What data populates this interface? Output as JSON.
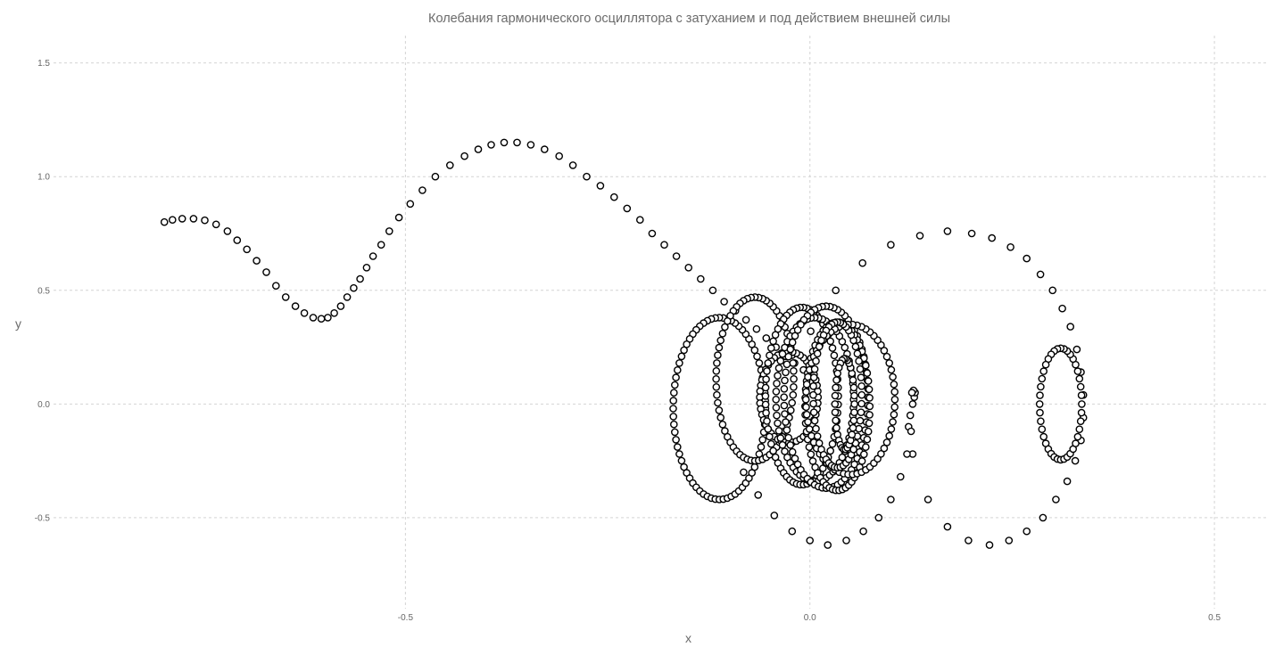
{
  "chart_data": {
    "type": "scatter",
    "title": "Колебания гармонического осциллятора с затуханием и под действием внешней силы",
    "xlabel": "x",
    "ylabel": "y",
    "xlim": [
      -0.935,
      0.565
    ],
    "ylim": [
      -0.9,
      1.62
    ],
    "x_ticks": [
      -0.5,
      0.0,
      0.5
    ],
    "x_tick_labels": [
      "-0.5",
      "0.0",
      "0.5"
    ],
    "y_ticks": [
      -0.5,
      0.0,
      0.5,
      1.0,
      1.5
    ],
    "y_tick_labels": [
      "-0.5",
      "0.0",
      "0.5",
      "1.0",
      "1.5"
    ],
    "grid": true,
    "legend": "none",
    "marker": "open-circle",
    "marker_color": "#000000",
    "series": [
      {
        "x": [
          -0.798,
          -0.788,
          -0.776,
          -0.762,
          -0.748,
          -0.734,
          -0.72,
          -0.708,
          -0.696,
          -0.684,
          -0.672,
          -0.66,
          -0.648,
          -0.636,
          -0.625,
          -0.614,
          -0.604,
          -0.596,
          -0.588,
          -0.58,
          -0.572,
          -0.564,
          -0.556,
          -0.548,
          -0.54,
          -0.53,
          -0.52,
          -0.508,
          -0.494,
          -0.479,
          -0.463,
          -0.445,
          -0.427,
          -0.41,
          -0.394,
          -0.378,
          -0.362,
          -0.345,
          -0.328,
          -0.31,
          -0.293,
          -0.276,
          -0.259,
          -0.242,
          -0.226,
          -0.21,
          -0.195,
          -0.18,
          -0.165,
          -0.15,
          -0.135,
          -0.12,
          -0.106,
          -0.092,
          -0.079,
          -0.066,
          -0.054,
          -0.042,
          -0.03,
          -0.019,
          -0.008,
          0.003
        ],
        "y": [
          0.8,
          0.81,
          0.815,
          0.815,
          0.808,
          0.79,
          0.76,
          0.72,
          0.68,
          0.63,
          0.58,
          0.52,
          0.47,
          0.43,
          0.4,
          0.38,
          0.375,
          0.38,
          0.4,
          0.43,
          0.47,
          0.51,
          0.55,
          0.6,
          0.65,
          0.7,
          0.76,
          0.82,
          0.88,
          0.94,
          1.0,
          1.05,
          1.09,
          1.12,
          1.14,
          1.15,
          1.15,
          1.14,
          1.12,
          1.09,
          1.05,
          1.0,
          0.96,
          0.91,
          0.86,
          0.81,
          0.75,
          0.7,
          0.65,
          0.6,
          0.55,
          0.5,
          0.45,
          0.41,
          0.37,
          0.33,
          0.29,
          0.25,
          0.21,
          0.18,
          0.15,
          0.12
        ]
      },
      {
        "x": [
          0.001,
          0.032,
          0.065,
          0.1,
          0.136,
          0.17,
          0.2,
          0.225,
          0.248,
          0.268,
          0.285,
          0.3,
          0.312,
          0.322,
          0.33,
          0.335,
          0.338,
          0.338,
          0.335,
          0.328,
          0.318,
          0.304,
          0.288,
          0.268,
          0.246,
          0.222,
          0.196,
          0.17,
          0.146,
          0.127,
          0.122,
          0.124,
          0.127,
          0.129,
          0.13,
          0.128,
          0.126
        ],
        "y": [
          0.32,
          0.5,
          0.62,
          0.7,
          0.74,
          0.76,
          0.75,
          0.73,
          0.69,
          0.64,
          0.57,
          0.5,
          0.42,
          0.34,
          0.24,
          0.14,
          0.04,
          -0.06,
          -0.16,
          -0.25,
          -0.34,
          -0.42,
          -0.5,
          -0.56,
          -0.6,
          -0.62,
          -0.6,
          -0.54,
          -0.42,
          -0.22,
          -0.1,
          -0.05,
          0.0,
          0.03,
          0.05,
          0.06,
          0.05
        ]
      },
      {
        "x": [
          0.125,
          0.12,
          0.112,
          0.1,
          0.085,
          0.066,
          0.045,
          0.022,
          0.0,
          -0.022,
          -0.044,
          -0.064,
          -0.082
        ],
        "y": [
          -0.12,
          -0.22,
          -0.32,
          -0.42,
          -0.5,
          -0.56,
          -0.6,
          -0.62,
          -0.6,
          -0.56,
          -0.49,
          -0.4,
          -0.3
        ]
      },
      {
        "type": "ellipses",
        "ellipses": [
          {
            "cx": -0.112,
            "cy": -0.02,
            "rx": 0.057,
            "ry": 0.4,
            "n": 72
          },
          {
            "cx": -0.068,
            "cy": 0.11,
            "rx": 0.048,
            "ry": 0.36,
            "n": 64
          },
          {
            "cx": -0.026,
            "cy": 0.03,
            "rx": 0.036,
            "ry": 0.2,
            "n": 48
          },
          {
            "cx": -0.01,
            "cy": 0.035,
            "rx": 0.045,
            "ry": 0.39,
            "n": 66
          },
          {
            "cx": 0.006,
            "cy": 0.02,
            "rx": 0.048,
            "ry": 0.36,
            "n": 64
          },
          {
            "cx": 0.02,
            "cy": 0.03,
            "rx": 0.052,
            "ry": 0.4,
            "n": 68
          },
          {
            "cx": 0.034,
            "cy": -0.01,
            "rx": 0.04,
            "ry": 0.37,
            "n": 62
          },
          {
            "cx": 0.05,
            "cy": 0.02,
            "rx": 0.055,
            "ry": 0.33,
            "n": 62
          },
          {
            "cx": 0.034,
            "cy": 0.04,
            "rx": 0.03,
            "ry": 0.32,
            "n": 52
          },
          {
            "cx": 0.043,
            "cy": 0.0,
            "rx": 0.012,
            "ry": 0.2,
            "n": 34
          },
          {
            "cx": 0.31,
            "cy": 0.0,
            "rx": 0.026,
            "ry": 0.245,
            "n": 40
          }
        ]
      }
    ]
  }
}
